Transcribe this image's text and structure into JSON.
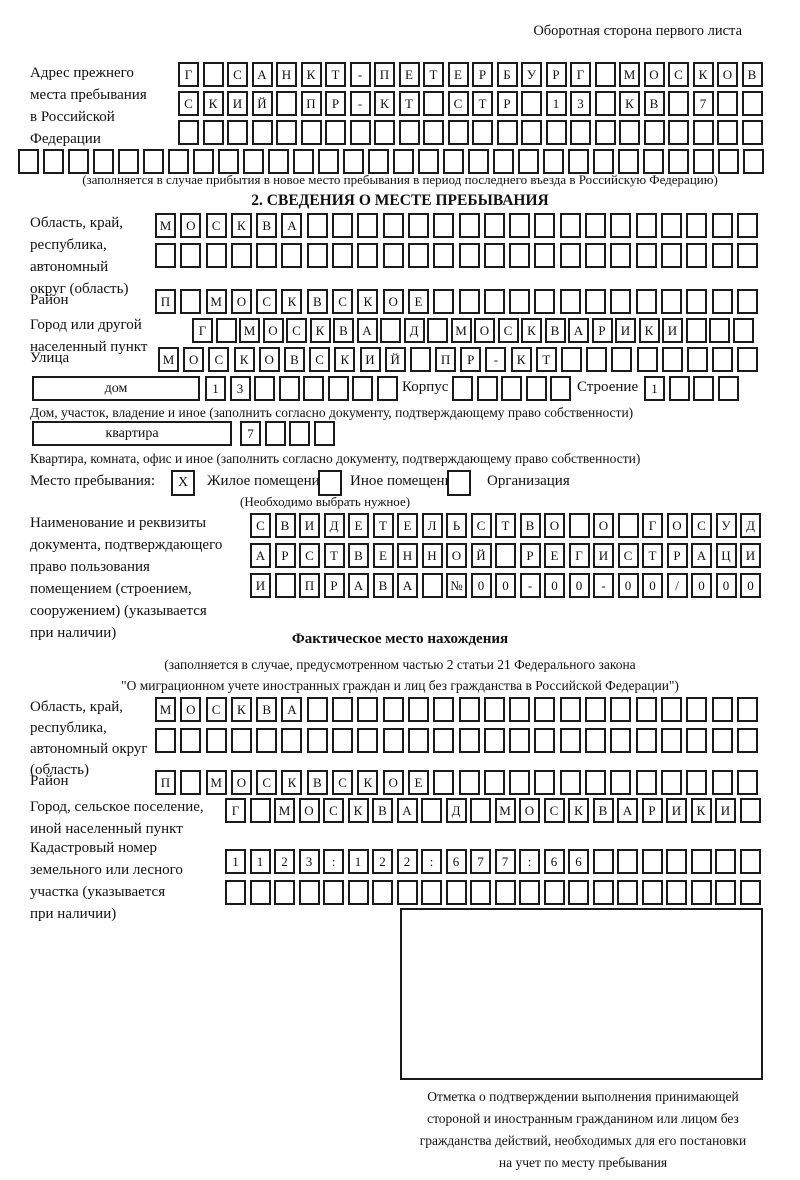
{
  "page": {
    "header": "Оборотная сторона первого листа"
  },
  "section_prev": {
    "label": [
      "Адрес прежнего",
      "места пребывания",
      "в Российской",
      "Федерации"
    ],
    "rows": [
      "Г САНКТ-ПЕТЕРБУРГ МОСКОВ",
      "СКИЙ ПР-КТ СТР 13 КВ 7  ",
      "                        ",
      "                              "
    ],
    "note": "(заполняется в случае прибытия в новое место пребывания в период последнего въезда в Российскую Федерацию)"
  },
  "section2": {
    "title": "2. СВЕДЕНИЯ О МЕСТЕ ПРЕБЫВАНИЯ",
    "region_label": [
      "Область, край,",
      "республика,",
      "автономный",
      "округ (область)"
    ],
    "region_rows": [
      "МОСКВА                  ",
      "                        "
    ],
    "rayon_label": "Район",
    "rayon_row": "П МОСКВСКОЕ             ",
    "city_label": [
      "Город или другой",
      "населенный пункт"
    ],
    "city_row": "Г МОСКВА Д МОСКВАРИКИ   ",
    "street_label": "Улица",
    "street_row": "МОСКОВСКИЙ ПР-КТ        ",
    "house_label": "дом",
    "house_row": "13      ",
    "korpus_label": "Корпус",
    "korpus_row": "     ",
    "stroenie_label": "Строение",
    "stroenie_row": "1   ",
    "house_note": "Дом, участок, владение и иное (заполнить согласно документу, подтверждающему право собственности)",
    "apartment_label": "квартира",
    "apartment_row": "7   ",
    "apartment_note": "Квартира, комната, офис и иное (заполнить согласно документу, подтверждающему право собственности)",
    "stay_place": {
      "label": "Место пребывания:",
      "options": [
        {
          "label": "Жилое помещение",
          "value": "X"
        },
        {
          "label": "Иное помещение",
          "value": ""
        },
        {
          "label": "Организация",
          "value": ""
        }
      ],
      "note": "(Необходимо выбрать нужное)"
    },
    "doc_label": [
      "Наименование и реквизиты",
      "документа, подтверждающего",
      "право пользования",
      "помещением (строением,",
      "сооружением) (указывается",
      "при наличии)"
    ],
    "doc_rows": [
      "СВИДЕТЕЛЬСТВО О ГОСУД",
      "АРСТВЕННОЙ РЕГИСТРАЦИ",
      "И ПРАВА №00-00-00/000"
    ]
  },
  "section_fact": {
    "title": "Фактическое место нахождения",
    "note": [
      "(заполняется в случае, предусмотренном частью 2 статьи 21 Федерального закона",
      "\"О миграционном учете иностранных граждан и лиц без гражданства в Российской Федерации\")"
    ],
    "region_label": [
      "Область, край,",
      "республика,",
      "автономный округ",
      "(область)"
    ],
    "region_rows": [
      "МОСКВА                  ",
      "                        "
    ],
    "rayon_label": "Район",
    "rayon_row": "П МОСКВСКОЕ             ",
    "city_label": [
      "Город, сельское поселение,",
      "иной населенный пункт"
    ],
    "city_row": "Г МОСКВА Д МОСКВАРИКИ ",
    "cadastre_label": [
      "Кадастровый номер",
      "земельного или лесного",
      "участка (указывается",
      "при наличии)"
    ],
    "cadastre_rows": [
      "1123:122:677:66       ",
      "                      "
    ],
    "stamp_note": [
      "Отметка о подтверждении выполнения принимающей",
      "стороной и иностранным гражданином или лицом без",
      "гражданства действий, необходимых для его постановки",
      "на учет по месту пребывания"
    ]
  }
}
